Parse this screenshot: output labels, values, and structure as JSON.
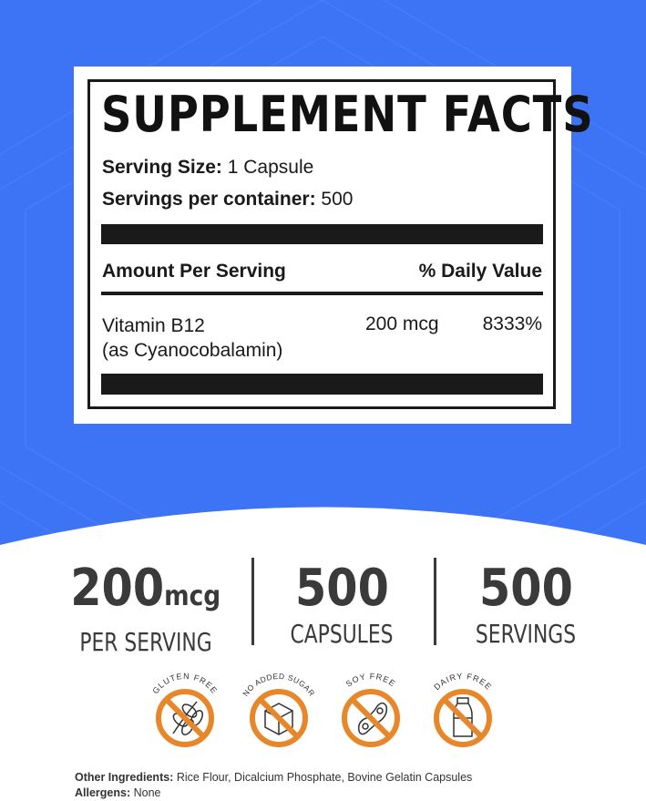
{
  "colors": {
    "background": "#3d74f5",
    "badge": "#e8862a",
    "text": "#3a3a3a"
  },
  "label": {
    "title": "SUPPLEMENT FACTS",
    "serving_size_label": "Serving Size:",
    "serving_size_value": "1 Capsule",
    "servings_label": "Servings per container:",
    "servings_value": "500",
    "amount_header": "Amount Per Serving",
    "dv_header": "% Daily Value",
    "nutrient": {
      "name": "Vitamin B12",
      "form": "(as Cyanocobalamin)",
      "amount": "200 mcg",
      "dv": "8333%"
    }
  },
  "stats": [
    {
      "value": "200",
      "unit": "mcg",
      "caption": "PER SERVING"
    },
    {
      "value": "500",
      "unit": "",
      "caption": "CAPSULES"
    },
    {
      "value": "500",
      "unit": "",
      "caption": "SERVINGS"
    }
  ],
  "badges": [
    {
      "label": "GLUTEN FREE",
      "icon": "wheat-icon"
    },
    {
      "label": "NO ADDED SUGAR",
      "icon": "sugar-cube-icon"
    },
    {
      "label": "SOY FREE",
      "icon": "soybean-icon"
    },
    {
      "label": "DAIRY FREE",
      "icon": "milk-bottle-icon"
    }
  ],
  "footer": {
    "ingredients_label": "Other Ingredients:",
    "ingredients_value": "Rice Flour, Dicalcium Phosphate, Bovine Gelatin Capsules",
    "allergens_label": "Allergens:",
    "allergens_value": "None"
  }
}
